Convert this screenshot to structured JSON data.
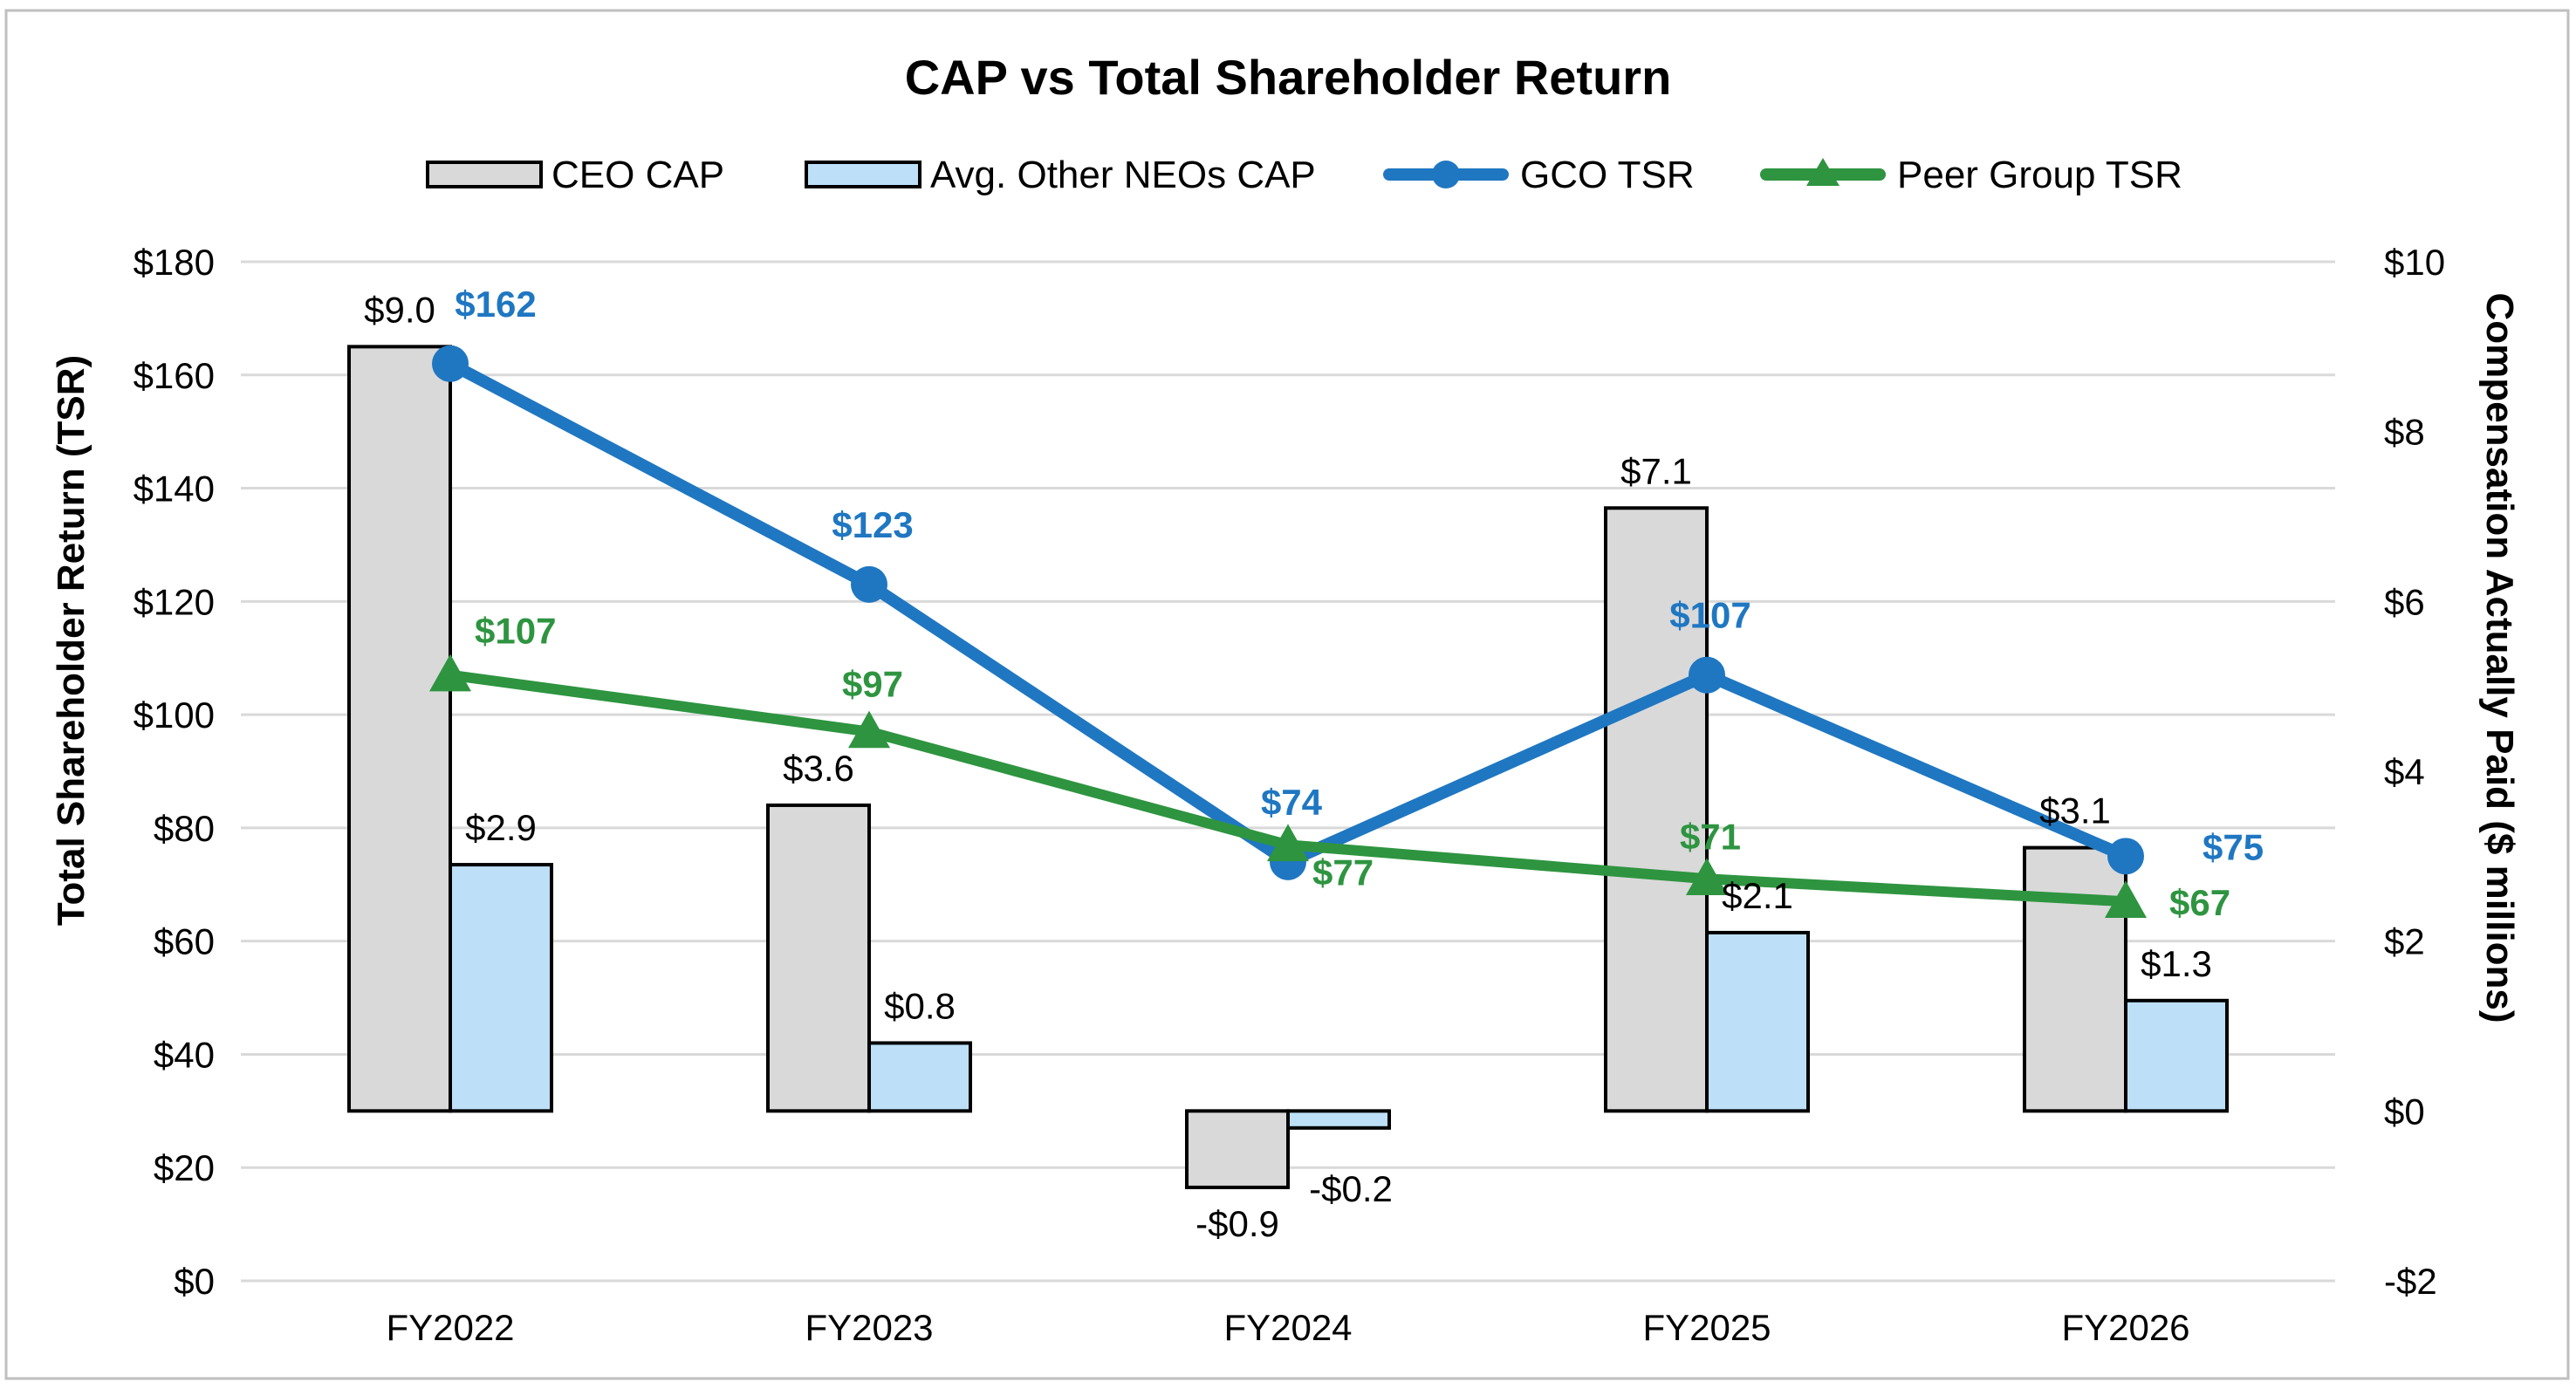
{
  "chart_data": {
    "type": "bar",
    "title": "CAP vs Total Shareholder Return",
    "categories": [
      "FY2022",
      "FY2023",
      "FY2024",
      "FY2025",
      "FY2026"
    ],
    "series": [
      {
        "name": "CEO CAP",
        "kind": "bar",
        "axis": "right",
        "values": [
          9.0,
          3.6,
          -0.9,
          7.1,
          3.1
        ],
        "labels": [
          "$9.0",
          "$3.6",
          "-$0.9",
          "$7.1",
          "$3.1"
        ],
        "color": "#d9d9d9"
      },
      {
        "name": "Avg. Other NEOs CAP",
        "kind": "bar",
        "axis": "right",
        "values": [
          2.9,
          0.8,
          -0.2,
          2.1,
          1.3
        ],
        "labels": [
          "$2.9",
          "$0.8",
          "-$0.2",
          "$2.1",
          "$1.3"
        ],
        "color": "#bde0f8"
      },
      {
        "name": "GCO TSR",
        "kind": "line",
        "axis": "left",
        "marker": "circle",
        "values": [
          162,
          123,
          74,
          107,
          75
        ],
        "labels": [
          "$162",
          "$123",
          "$74",
          "$107",
          "$75"
        ],
        "color": "#1f77c2"
      },
      {
        "name": "Peer Group TSR",
        "kind": "line",
        "axis": "left",
        "marker": "triangle",
        "values": [
          107,
          97,
          77,
          71,
          67
        ],
        "labels": [
          "$107",
          "$97",
          "$77",
          "$71",
          "$67"
        ],
        "color": "#2e9440"
      }
    ],
    "left_axis": {
      "label": "Total Shareholder Return (TSR)",
      "ylim": [
        0,
        180
      ],
      "ticks": [
        0,
        20,
        40,
        60,
        80,
        100,
        120,
        140,
        160,
        180
      ],
      "tick_labels": [
        "$0",
        "$20",
        "$40",
        "$60",
        "$80",
        "$100",
        "$120",
        "$140",
        "$160",
        "$180"
      ]
    },
    "right_axis": {
      "label": "Compensation Actually Paid ($ millions)",
      "ylim": [
        -2,
        10
      ],
      "ticks": [
        -2,
        0,
        2,
        4,
        6,
        8,
        10
      ],
      "tick_labels": [
        "-$2",
        "$0",
        "$2",
        "$4",
        "$6",
        "$8",
        "$10"
      ]
    },
    "grid": true,
    "legend": "top-center"
  }
}
